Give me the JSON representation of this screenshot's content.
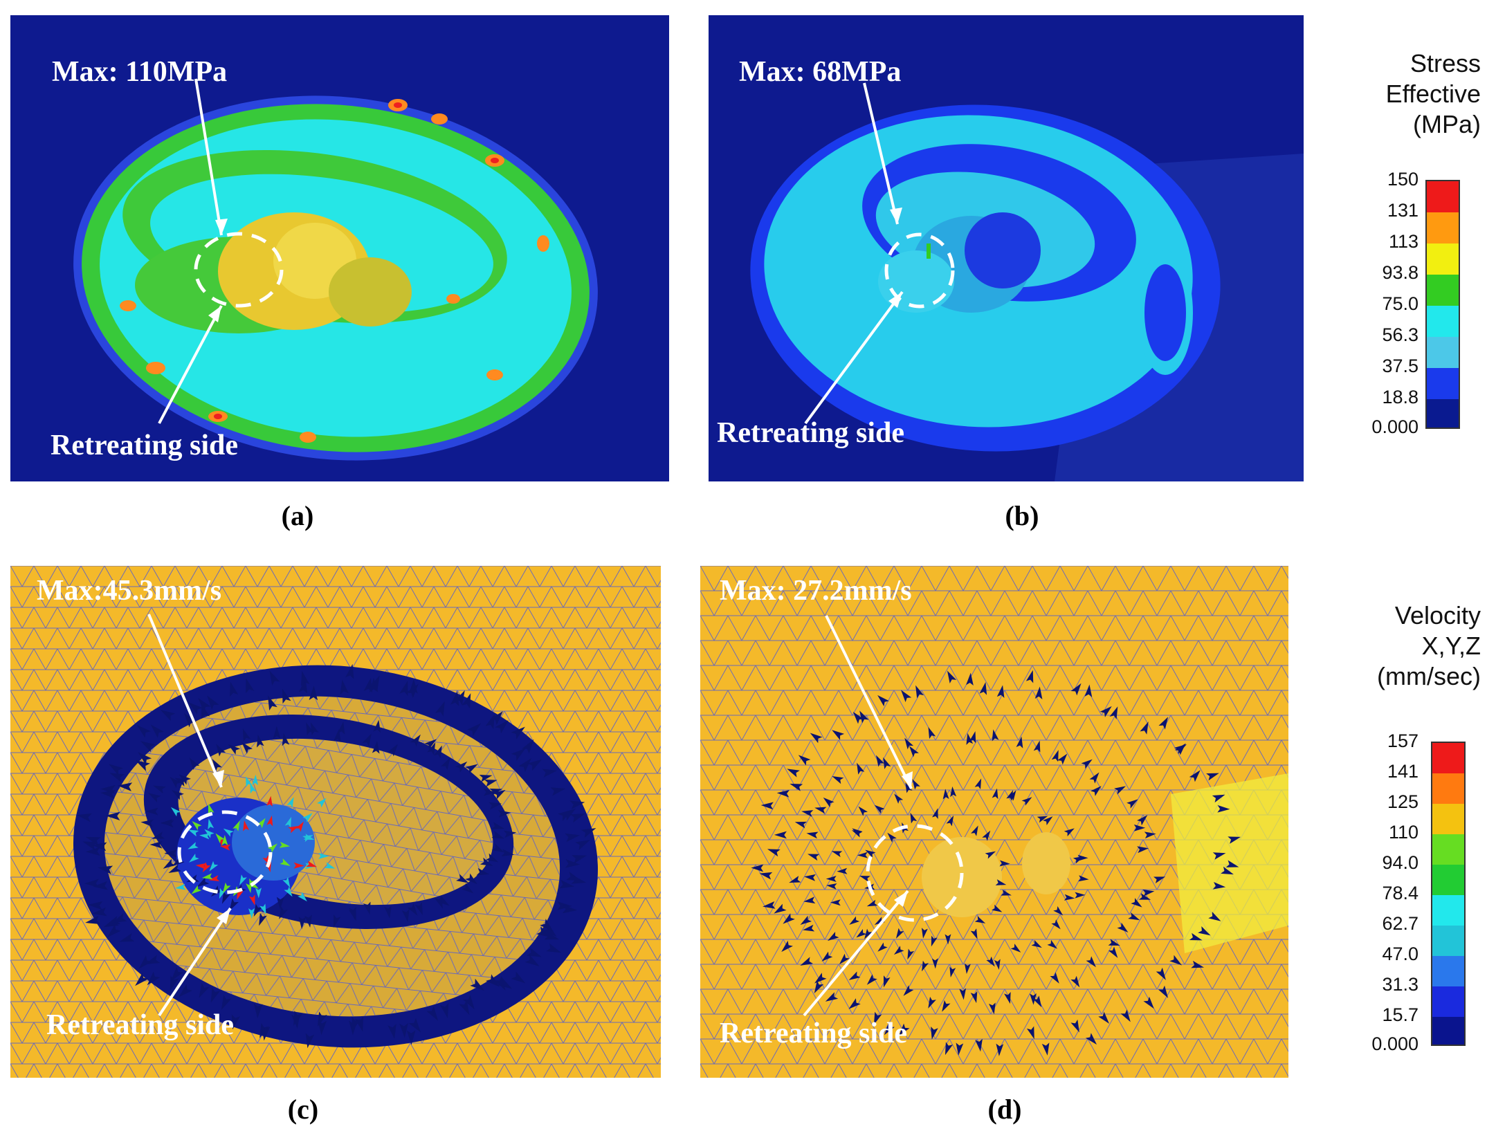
{
  "panels": {
    "a": {
      "caption": "(a)",
      "max_label": "Max: 110MPa",
      "side_label": "Retreating side"
    },
    "b": {
      "caption": "(b)",
      "max_label": "Max: 68MPa",
      "side_label": "Retreating side"
    },
    "c": {
      "caption": "(c)",
      "max_label": "Max:45.3mm/s",
      "side_label": "Retreating side"
    },
    "d": {
      "caption": "(d)",
      "max_label": "Max: 27.2mm/s",
      "side_label": "Retreating side"
    }
  },
  "stress_legend": {
    "title": "Stress\nEffective\n(MPa)",
    "ticks": [
      "150",
      "131",
      "113",
      "93.8",
      "75.0",
      "56.3",
      "37.5",
      "18.8",
      "0.000"
    ],
    "colors": [
      "#ee1a1a",
      "#ff9a10",
      "#f2ef10",
      "#33cc22",
      "#22e8ec",
      "#4cc8e8",
      "#1a3aec",
      "#0a1a90"
    ]
  },
  "velocity_legend": {
    "title": "Velocity\nX,Y,Z\n(mm/sec)",
    "ticks": [
      "157",
      "141",
      "125",
      "110",
      "94.0",
      "78.4",
      "62.7",
      "47.0",
      "31.3",
      "15.7",
      "0.000"
    ],
    "colors": [
      "#ee1a1a",
      "#ff7a10",
      "#f4c210",
      "#66dd22",
      "#22cc33",
      "#22e8ec",
      "#22c4d8",
      "#2a78ec",
      "#1a2ade",
      "#0a148e"
    ]
  },
  "colors": {
    "deep_blue": "#0e1a8f",
    "mesh_yellow": "#f4b92a",
    "mesh_line": "#6a6ab8",
    "arrow_blue": "#0b1470"
  }
}
